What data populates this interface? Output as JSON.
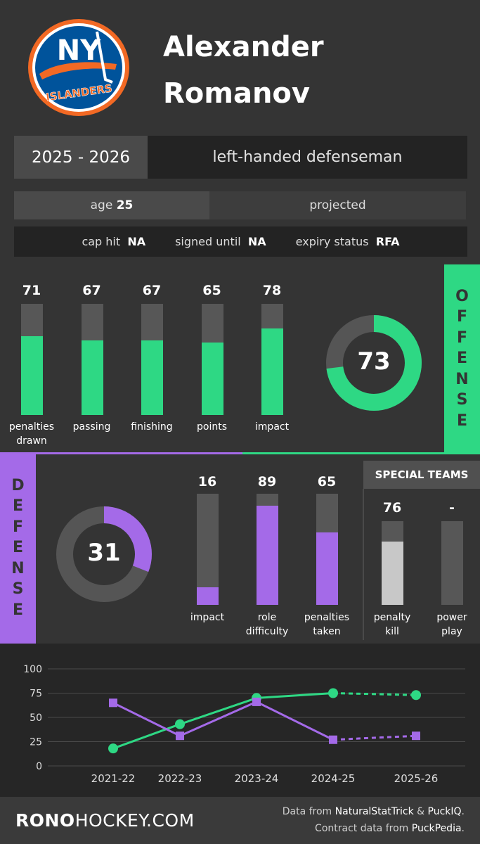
{
  "header": {
    "team_logo": "ny-islanders-logo",
    "logo_text_top": "NY",
    "logo_text_bottom": "ISLANDERS",
    "first_name": "Alexander",
    "last_name": "Romanov"
  },
  "info": {
    "season": "2025 - 2026",
    "role": "left-handed defenseman",
    "age_label": "age",
    "age_value": "25",
    "status": "projected",
    "cap_hit_label": "cap hit",
    "cap_hit_value": "NA",
    "signed_until_label": "signed until",
    "signed_until_value": "NA",
    "expiry_label": "expiry status",
    "expiry_value": "RFA"
  },
  "offense": {
    "tab_letters": [
      "O",
      "F",
      "F",
      "E",
      "N",
      "S",
      "E"
    ],
    "metrics": [
      {
        "label_l1": "penalties",
        "label_l2": "drawn",
        "value": 71
      },
      {
        "label_l1": "passing",
        "label_l2": "",
        "value": 67
      },
      {
        "label_l1": "finishing",
        "label_l2": "",
        "value": 67
      },
      {
        "label_l1": "points",
        "label_l2": "",
        "value": 65
      },
      {
        "label_l1": "impact",
        "label_l2": "",
        "value": 78
      }
    ],
    "overall": 73,
    "color": "#2ed884"
  },
  "defense": {
    "tab_letters": [
      "D",
      "E",
      "F",
      "E",
      "N",
      "S",
      "E"
    ],
    "overall": 31,
    "metrics": [
      {
        "label_l1": "impact",
        "label_l2": "",
        "value": 16
      },
      {
        "label_l1": "role",
        "label_l2": "difficulty",
        "value": 89
      },
      {
        "label_l1": "penalties",
        "label_l2": "taken",
        "value": 65
      }
    ],
    "color": "#a46ae8"
  },
  "special_teams": {
    "title": "SPECIAL TEAMS",
    "metrics": [
      {
        "label_l1": "penalty",
        "label_l2": "kill",
        "value": 76,
        "display": "76"
      },
      {
        "label_l1": "power",
        "label_l2": "play",
        "value": null,
        "display": "-"
      }
    ],
    "color": "#c8c8c8"
  },
  "chart_data": {
    "type": "line",
    "categories": [
      "2021-22",
      "2022-23",
      "2023-24",
      "2024-25",
      "2025-26"
    ],
    "ylim": [
      0,
      100
    ],
    "yticks": [
      0,
      25,
      50,
      75,
      100
    ],
    "grid": true,
    "series": [
      {
        "key": "offense",
        "values": [
          18,
          43,
          70,
          75,
          73
        ],
        "color": "#2ed884",
        "marker": "circle"
      },
      {
        "key": "defense",
        "values": [
          65,
          31,
          66,
          27,
          31
        ],
        "color": "#a46ae8",
        "marker": "square"
      }
    ],
    "projected_from_index": 3
  },
  "footer": {
    "site_bold": "RONO",
    "site_rest": "HOCKEY.COM",
    "credit1_pre": "Data from",
    "credit1_src1": "NaturalStatTrick",
    "credit1_amp": "&",
    "credit1_src2": "PuckIQ",
    "credit1_end": ".",
    "credit2_pre": "Contract data from",
    "credit2_src": "PuckPedia",
    "credit2_end": "."
  }
}
